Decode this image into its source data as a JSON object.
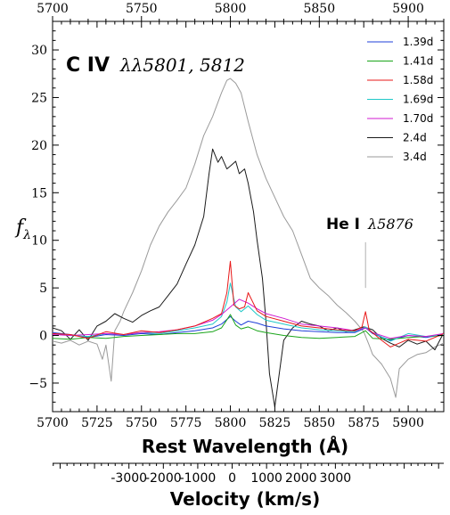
{
  "chart_data": {
    "type": "line",
    "xlabel": "Rest Wavelength (Å)",
    "ylabel": "f_λ",
    "xlim": [
      5700,
      5920
    ],
    "ylim": [
      -8,
      33
    ],
    "x_ticks": [
      "5700",
      "5725",
      "5750",
      "5775",
      "5800",
      "5825",
      "5850",
      "5875",
      "5900"
    ],
    "x_tick_values": [
      5700,
      5725,
      5750,
      5775,
      5800,
      5825,
      5850,
      5875,
      5900
    ],
    "top_ticks": [
      "5700",
      "5750",
      "5800",
      "5850",
      "5900"
    ],
    "top_tick_values": [
      5700,
      5750,
      5800,
      5850,
      5900
    ],
    "y_ticks": [
      "−5",
      "0",
      "5",
      "10",
      "15",
      "20",
      "25",
      "30"
    ],
    "y_tick_values": [
      -5,
      0,
      5,
      10,
      15,
      20,
      25,
      30
    ],
    "grid": false,
    "legend_position": "top-right",
    "annotations": {
      "civ_bold": "C IV",
      "civ_math": "λλ5801, 5812",
      "hei_bold": "He I",
      "hei_math": "λ5876",
      "hei_marker_x": 5876
    },
    "secondary_axis": {
      "label": "Velocity (km/s)",
      "tick_labels": [
        "-3000",
        "-2000",
        "-1000",
        "0",
        "1000",
        "2000",
        "3000"
      ],
      "tick_velocities": [
        -3000,
        -2000,
        -1000,
        0,
        1000,
        2000,
        3000
      ],
      "reference_wavelength": 5801
    },
    "series": [
      {
        "name": "1.39d",
        "color": "#1f3fd8",
        "x": [
          5700,
          5710,
          5720,
          5730,
          5740,
          5750,
          5760,
          5770,
          5780,
          5790,
          5795,
          5800,
          5803,
          5806,
          5810,
          5815,
          5820,
          5830,
          5840,
          5850,
          5860,
          5870,
          5876,
          5880,
          5890,
          5900,
          5910,
          5920
        ],
        "y": [
          0.3,
          0.1,
          -0.2,
          0.1,
          0.0,
          0.2,
          0.1,
          0.3,
          0.5,
          0.8,
          1.2,
          2.0,
          1.5,
          1.1,
          1.5,
          1.3,
          1.0,
          0.7,
          0.5,
          0.4,
          0.3,
          0.3,
          0.8,
          0.2,
          -0.5,
          0.0,
          -0.2,
          0.1
        ]
      },
      {
        "name": "1.41d",
        "color": "#1aa51a",
        "x": [
          5700,
          5710,
          5720,
          5730,
          5740,
          5750,
          5760,
          5770,
          5780,
          5790,
          5795,
          5800,
          5803,
          5806,
          5810,
          5815,
          5820,
          5830,
          5840,
          5850,
          5860,
          5870,
          5876,
          5880,
          5890,
          5900,
          5910,
          5920
        ],
        "y": [
          -0.3,
          -0.4,
          -0.2,
          -0.3,
          -0.1,
          0.0,
          0.1,
          0.2,
          0.2,
          0.4,
          0.8,
          2.2,
          1.1,
          0.7,
          0.9,
          0.5,
          0.3,
          0.0,
          -0.2,
          -0.3,
          -0.2,
          -0.1,
          0.5,
          -0.3,
          -0.4,
          -0.2,
          -0.1,
          0.0
        ]
      },
      {
        "name": "1.58d",
        "color": "#e81818",
        "x": [
          5700,
          5710,
          5720,
          5730,
          5740,
          5750,
          5760,
          5770,
          5780,
          5790,
          5795,
          5798,
          5800,
          5802,
          5805,
          5808,
          5810,
          5815,
          5820,
          5830,
          5840,
          5850,
          5860,
          5870,
          5874,
          5876,
          5878,
          5885,
          5890,
          5900,
          5910,
          5920
        ],
        "y": [
          0.2,
          0.1,
          -0.3,
          0.4,
          0.1,
          0.5,
          0.3,
          0.6,
          1.0,
          1.8,
          2.3,
          4.5,
          7.8,
          3.2,
          2.8,
          3.0,
          4.5,
          2.6,
          2.0,
          1.5,
          1.0,
          0.8,
          0.6,
          0.5,
          0.9,
          2.5,
          0.6,
          -0.5,
          -1.2,
          -0.4,
          -0.6,
          0.2
        ]
      },
      {
        "name": "1.69d",
        "color": "#20c8c8",
        "x": [
          5700,
          5710,
          5720,
          5730,
          5740,
          5750,
          5760,
          5770,
          5780,
          5790,
          5795,
          5798,
          5800,
          5803,
          5806,
          5810,
          5815,
          5820,
          5830,
          5840,
          5850,
          5860,
          5870,
          5876,
          5880,
          5890,
          5900,
          5910,
          5920
        ],
        "y": [
          0.2,
          0.0,
          -0.1,
          0.2,
          0.1,
          0.3,
          0.2,
          0.5,
          0.8,
          1.2,
          2.0,
          3.5,
          5.5,
          3.0,
          2.5,
          3.1,
          2.2,
          1.6,
          1.2,
          0.8,
          0.6,
          0.5,
          0.4,
          0.9,
          0.3,
          -0.6,
          0.2,
          -0.1,
          0.1
        ]
      },
      {
        "name": "1.70d",
        "color": "#d01ad0",
        "x": [
          5700,
          5710,
          5720,
          5730,
          5740,
          5750,
          5760,
          5770,
          5780,
          5790,
          5795,
          5800,
          5805,
          5810,
          5815,
          5820,
          5830,
          5840,
          5850,
          5860,
          5870,
          5876,
          5880,
          5890,
          5900,
          5910,
          5920
        ],
        "y": [
          0.1,
          0.0,
          0.1,
          0.2,
          0.1,
          0.3,
          0.4,
          0.6,
          1.0,
          1.6,
          2.2,
          3.0,
          3.8,
          3.4,
          2.8,
          2.3,
          1.8,
          1.2,
          1.0,
          0.8,
          0.5,
          0.8,
          0.3,
          -0.3,
          0.0,
          -0.1,
          0.2
        ]
      },
      {
        "name": "2.4d",
        "color": "#1a1a1a",
        "x": [
          5700,
          5705,
          5710,
          5715,
          5720,
          5725,
          5730,
          5735,
          5740,
          5745,
          5750,
          5755,
          5760,
          5765,
          5770,
          5775,
          5780,
          5785,
          5788,
          5790,
          5793,
          5795,
          5798,
          5800,
          5803,
          5805,
          5808,
          5810,
          5813,
          5815,
          5818,
          5820,
          5822,
          5825,
          5830,
          5835,
          5840,
          5845,
          5850,
          5855,
          5860,
          5865,
          5870,
          5875,
          5880,
          5885,
          5890,
          5895,
          5900,
          5905,
          5910,
          5915,
          5920
        ],
        "y": [
          0.8,
          0.5,
          -0.4,
          0.6,
          -0.5,
          1.0,
          1.5,
          2.3,
          1.8,
          1.4,
          2.1,
          2.6,
          3.0,
          4.2,
          5.4,
          7.5,
          9.5,
          12.5,
          17.0,
          19.6,
          18.2,
          18.8,
          17.5,
          17.8,
          18.3,
          17.0,
          17.5,
          16.0,
          13.0,
          10.0,
          6.0,
          1.5,
          -4.0,
          -7.5,
          -0.5,
          0.8,
          1.5,
          1.2,
          1.0,
          0.5,
          0.8,
          0.4,
          0.6,
          0.9,
          0.6,
          -0.3,
          -0.8,
          -1.2,
          -0.5,
          -0.9,
          -0.6,
          -1.5,
          0.3
        ]
      },
      {
        "name": "3.4d",
        "color": "#9a9a9a",
        "x": [
          5700,
          5705,
          5710,
          5715,
          5720,
          5725,
          5728,
          5730,
          5733,
          5735,
          5738,
          5740,
          5745,
          5750,
          5755,
          5760,
          5765,
          5770,
          5775,
          5780,
          5785,
          5790,
          5795,
          5798,
          5800,
          5803,
          5806,
          5810,
          5815,
          5820,
          5825,
          5830,
          5835,
          5840,
          5845,
          5850,
          5855,
          5860,
          5865,
          5870,
          5875,
          5878,
          5880,
          5885,
          5890,
          5893,
          5895,
          5900,
          5905,
          5910,
          5915,
          5920
        ],
        "y": [
          -0.6,
          -0.8,
          -0.5,
          -1.0,
          -0.6,
          -0.9,
          -2.5,
          -1.0,
          -4.8,
          0.5,
          1.5,
          2.5,
          4.5,
          6.8,
          9.5,
          11.5,
          13.0,
          14.2,
          15.5,
          18.0,
          21.0,
          23.0,
          25.5,
          26.8,
          27.0,
          26.5,
          25.5,
          22.5,
          19.0,
          16.5,
          14.5,
          12.5,
          11.0,
          8.5,
          6.0,
          5.0,
          4.2,
          3.2,
          2.4,
          1.5,
          0.4,
          -1.0,
          -2.0,
          -3.0,
          -4.5,
          -6.5,
          -3.5,
          -2.5,
          -2.0,
          -1.8,
          -1.2,
          -0.8
        ]
      }
    ]
  }
}
